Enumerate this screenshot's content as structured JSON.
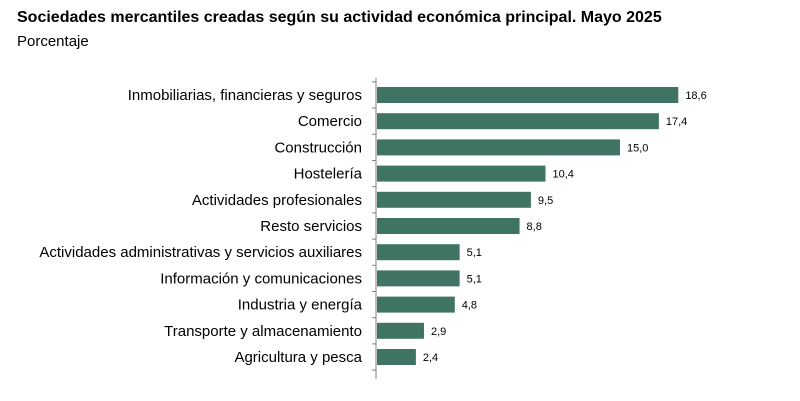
{
  "chart_data": {
    "type": "bar",
    "orientation": "horizontal",
    "title": "Sociedades mercantiles creadas según su actividad económica principal. Mayo 2025",
    "subtitle": "Porcentaje",
    "categories": [
      "Inmobiliarias, financieras y seguros",
      "Comercio",
      "Construcción",
      "Hostelería",
      "Actividades profesionales",
      "Resto servicios",
      "Actividades administrativas y servicios auxiliares",
      "Información y comunicaciones",
      "Industria y energía",
      "Transporte y almacenamiento",
      "Agricultura y pesca"
    ],
    "values": [
      18.6,
      17.4,
      15.0,
      10.4,
      9.5,
      8.8,
      5.1,
      5.1,
      4.8,
      2.9,
      2.4
    ],
    "value_labels": [
      "18,6",
      "17,4",
      "15,0",
      "10,4",
      "9,5",
      "8,8",
      "5,1",
      "5,1",
      "4,8",
      "2,9",
      "2,4"
    ],
    "xlim": [
      0,
      20
    ],
    "bar_color": "#3f7465",
    "axis_color": "#808080",
    "grid": false,
    "legend": "none"
  }
}
